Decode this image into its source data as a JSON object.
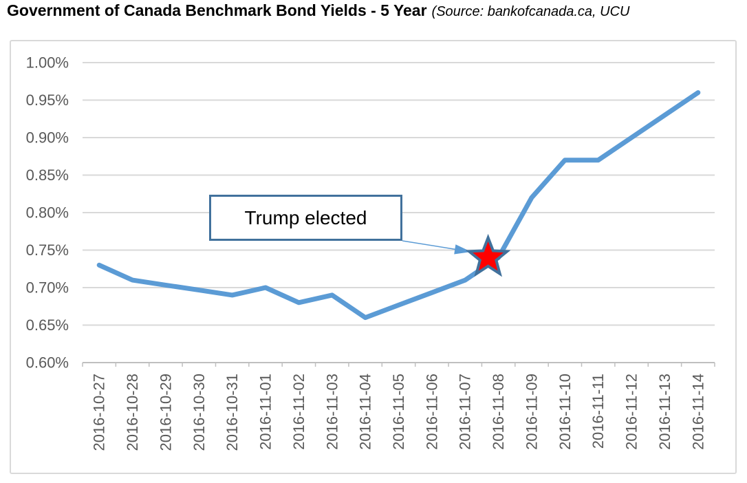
{
  "header": {
    "title": "Government of Canada Benchmark Bond Yields - 5 Year",
    "source_suffix": "(Source: bankofcanada.ca, UCU"
  },
  "colors": {
    "line": "#5B9BD5",
    "star_fill": "#FF0000",
    "star_border": "#41719C",
    "annotation_border": "#41719C",
    "gridline": "#D9D9D9",
    "axis_line": "#BFBFBF",
    "tick_text": "#595959",
    "title_text": "#000000",
    "background": "#FFFFFF"
  },
  "chart_data": {
    "type": "line",
    "title": "Government of Canada Benchmark Bond Yields - 5 Year",
    "xlabel": "",
    "ylabel": "",
    "x": [
      "2016-10-27",
      "2016-10-28",
      "2016-10-29",
      "2016-10-30",
      "2016-10-31",
      "2016-11-01",
      "2016-11-02",
      "2016-11-03",
      "2016-11-04",
      "2016-11-05",
      "2016-11-06",
      "2016-11-07",
      "2016-11-08",
      "2016-11-09",
      "2016-11-10",
      "2016-11-11",
      "2016-11-12",
      "2016-11-13",
      "2016-11-14"
    ],
    "series": [
      {
        "name": "5 Year benchmark bond yield (%)",
        "values": [
          0.73,
          0.71,
          0.7033,
          0.6967,
          0.69,
          0.7,
          0.68,
          0.69,
          0.66,
          0.6767,
          0.6933,
          0.71,
          0.74,
          0.82,
          0.87,
          0.87,
          0.9,
          0.93,
          0.96
        ]
      }
    ],
    "ylim": [
      0.6,
      1.0
    ],
    "ytick_labels": [
      "1.00%",
      "0.95%",
      "0.90%",
      "0.85%",
      "0.80%",
      "0.75%",
      "0.70%",
      "0.65%",
      "0.60%"
    ],
    "grid": true,
    "legend": "none",
    "x_label_rotation": -90,
    "annotation": {
      "text": "Trump elected",
      "target_x": "2016-11-08",
      "target_y": 0.74
    }
  }
}
